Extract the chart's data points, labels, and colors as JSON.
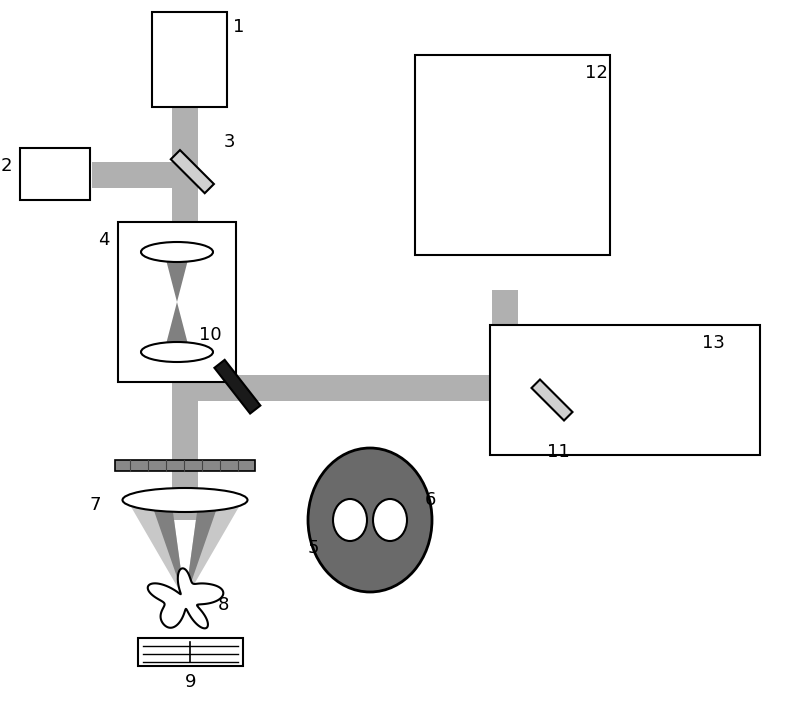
{
  "bg_color": "#ffffff",
  "beam_color": "#b0b0b0",
  "beam_dark": "#808080",
  "beam_light": "#c8c8c8",
  "black": "#000000",
  "figsize": [
    7.89,
    7.01
  ],
  "dpi": 100,
  "bx": 185,
  "bw": 26
}
